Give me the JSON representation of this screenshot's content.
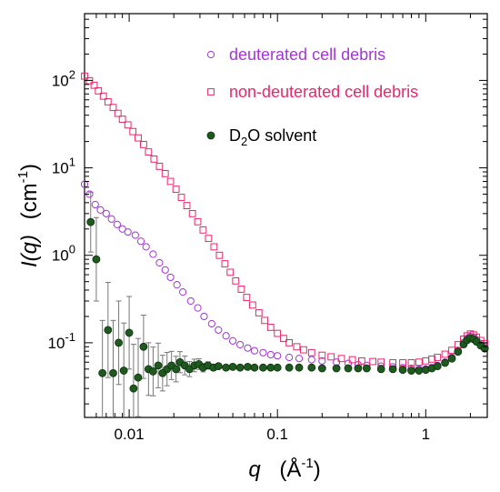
{
  "chart_data": {
    "type": "scatter",
    "x_scale": "log",
    "y_scale": "log",
    "xlim": [
      0.005,
      2.6
    ],
    "ylim": [
      0.014,
      580
    ],
    "grid": false,
    "legend_position": "top-right",
    "xlabel": {
      "symbol": "q",
      "unit_prefix": "(Å",
      "unit_exp": "-1",
      "unit_suffix": ")"
    },
    "ylabel": {
      "symbol": "I(q)",
      "unit_prefix": "(cm",
      "unit_exp": "-1",
      "unit_suffix": ")"
    },
    "x_ticks": [
      {
        "value": 0.01,
        "label": "0.01"
      },
      {
        "value": 0.1,
        "label": "0.1"
      },
      {
        "value": 1,
        "label": "1"
      }
    ],
    "y_ticks": [
      {
        "value": 0.1,
        "base": "10",
        "exp": "-1"
      },
      {
        "value": 1,
        "base": "10",
        "exp": "0"
      },
      {
        "value": 10,
        "base": "10",
        "exp": "1"
      },
      {
        "value": 100,
        "base": "10",
        "exp": "2"
      }
    ],
    "series": [
      {
        "name": "deuterated cell debris",
        "marker": "circle-open",
        "color": "#a236d6",
        "points": [
          [
            0.005,
            6.5
          ],
          [
            0.0054,
            5.0
          ],
          [
            0.0059,
            3.8
          ],
          [
            0.0064,
            3.3
          ],
          [
            0.007,
            3.0
          ],
          [
            0.0076,
            2.6
          ],
          [
            0.0083,
            2.25
          ],
          [
            0.009,
            2.0
          ],
          [
            0.0098,
            1.85
          ],
          [
            0.011,
            1.7
          ],
          [
            0.012,
            1.45
          ],
          [
            0.013,
            1.25
          ],
          [
            0.0145,
            1.03
          ],
          [
            0.016,
            0.82
          ],
          [
            0.0175,
            0.68
          ],
          [
            0.019,
            0.56
          ],
          [
            0.021,
            0.46
          ],
          [
            0.023,
            0.38
          ],
          [
            0.026,
            0.3
          ],
          [
            0.029,
            0.25
          ],
          [
            0.032,
            0.2
          ],
          [
            0.036,
            0.165
          ],
          [
            0.04,
            0.14
          ],
          [
            0.045,
            0.12
          ],
          [
            0.05,
            0.105
          ],
          [
            0.056,
            0.095
          ],
          [
            0.063,
            0.087
          ],
          [
            0.07,
            0.081
          ],
          [
            0.08,
            0.077
          ],
          [
            0.09,
            0.073
          ],
          [
            0.1,
            0.071
          ],
          [
            0.12,
            0.068
          ],
          [
            0.14,
            0.066
          ],
          [
            0.17,
            0.064
          ],
          [
            0.2,
            0.062
          ],
          [
            0.25,
            0.06
          ],
          [
            0.3,
            0.058
          ],
          [
            0.35,
            0.056
          ],
          [
            0.4,
            0.055
          ],
          [
            0.5,
            0.054
          ],
          [
            0.6,
            0.053
          ],
          [
            0.7,
            0.052
          ],
          [
            0.8,
            0.051
          ],
          [
            0.9,
            0.05
          ],
          [
            1.0,
            0.05
          ],
          [
            1.1,
            0.052
          ],
          [
            1.2,
            0.055
          ],
          [
            1.35,
            0.06
          ],
          [
            1.5,
            0.068
          ],
          [
            1.65,
            0.082
          ],
          [
            1.8,
            0.1
          ],
          [
            1.9,
            0.112
          ],
          [
            2.0,
            0.118
          ],
          [
            2.1,
            0.115
          ],
          [
            2.2,
            0.108
          ],
          [
            2.35,
            0.098
          ],
          [
            2.5,
            0.09
          ]
        ]
      },
      {
        "name": "non-deuterated cell debris",
        "marker": "square-open",
        "color": "#e8276b",
        "points": [
          [
            0.005,
            112
          ],
          [
            0.0054,
            99
          ],
          [
            0.0058,
            88
          ],
          [
            0.0062,
            76
          ],
          [
            0.0067,
            66
          ],
          [
            0.0072,
            57
          ],
          [
            0.0078,
            49
          ],
          [
            0.0084,
            42
          ],
          [
            0.009,
            36
          ],
          [
            0.0098,
            31
          ],
          [
            0.0106,
            26
          ],
          [
            0.0115,
            22
          ],
          [
            0.0125,
            18.5
          ],
          [
            0.0135,
            15.2
          ],
          [
            0.0147,
            12.6
          ],
          [
            0.016,
            10.4
          ],
          [
            0.0175,
            8.6
          ],
          [
            0.019,
            7.0
          ],
          [
            0.0207,
            5.7
          ],
          [
            0.0225,
            4.6
          ],
          [
            0.0245,
            3.7
          ],
          [
            0.0267,
            3.0
          ],
          [
            0.029,
            2.42
          ],
          [
            0.0315,
            1.95
          ],
          [
            0.0343,
            1.56
          ],
          [
            0.0373,
            1.25
          ],
          [
            0.0406,
            1.0
          ],
          [
            0.0442,
            0.8
          ],
          [
            0.048,
            0.64
          ],
          [
            0.0523,
            0.51
          ],
          [
            0.057,
            0.41
          ],
          [
            0.062,
            0.33
          ],
          [
            0.068,
            0.27
          ],
          [
            0.075,
            0.22
          ],
          [
            0.082,
            0.18
          ],
          [
            0.09,
            0.15
          ],
          [
            0.1,
            0.128
          ],
          [
            0.11,
            0.112
          ],
          [
            0.12,
            0.1
          ],
          [
            0.135,
            0.09
          ],
          [
            0.15,
            0.083
          ],
          [
            0.17,
            0.077
          ],
          [
            0.2,
            0.072
          ],
          [
            0.23,
            0.069
          ],
          [
            0.27,
            0.066
          ],
          [
            0.32,
            0.064
          ],
          [
            0.37,
            0.062
          ],
          [
            0.44,
            0.061
          ],
          [
            0.5,
            0.06
          ],
          [
            0.6,
            0.059
          ],
          [
            0.7,
            0.059
          ],
          [
            0.8,
            0.059
          ],
          [
            0.9,
            0.06
          ],
          [
            1.0,
            0.062
          ],
          [
            1.1,
            0.065
          ],
          [
            1.2,
            0.068
          ],
          [
            1.35,
            0.074
          ],
          [
            1.5,
            0.082
          ],
          [
            1.65,
            0.095
          ],
          [
            1.8,
            0.11
          ],
          [
            1.9,
            0.12
          ],
          [
            2.0,
            0.126
          ],
          [
            2.1,
            0.123
          ],
          [
            2.2,
            0.116
          ],
          [
            2.35,
            0.106
          ],
          [
            2.5,
            0.098
          ]
        ]
      },
      {
        "name": "D2O solvent",
        "legend_base": "D",
        "legend_sub": "2",
        "legend_rest": "O solvent",
        "marker": "circle-filled",
        "color": "#1e5a1e",
        "points": [
          [
            0.0055,
            2.4
          ],
          [
            0.006,
            0.9
          ],
          [
            0.0066,
            0.045
          ],
          [
            0.0072,
            0.14
          ],
          [
            0.0078,
            0.045
          ],
          [
            0.0085,
            0.1
          ],
          [
            0.0092,
            0.048
          ],
          [
            0.01,
            0.13
          ],
          [
            0.0107,
            0.03
          ],
          [
            0.0115,
            0.04
          ],
          [
            0.0125,
            0.09
          ],
          [
            0.0135,
            0.05
          ],
          [
            0.0145,
            0.047
          ],
          [
            0.0157,
            0.055
          ],
          [
            0.0168,
            0.045
          ],
          [
            0.018,
            0.05
          ],
          [
            0.0193,
            0.055
          ],
          [
            0.0207,
            0.05
          ],
          [
            0.022,
            0.06
          ],
          [
            0.0237,
            0.055
          ],
          [
            0.0255,
            0.05
          ],
          [
            0.0275,
            0.055
          ],
          [
            0.0295,
            0.057
          ],
          [
            0.0315,
            0.052
          ],
          [
            0.034,
            0.055
          ],
          [
            0.037,
            0.052
          ],
          [
            0.04,
            0.054
          ],
          [
            0.045,
            0.052
          ],
          [
            0.05,
            0.053
          ],
          [
            0.056,
            0.052
          ],
          [
            0.063,
            0.053
          ],
          [
            0.07,
            0.052
          ],
          [
            0.08,
            0.052
          ],
          [
            0.09,
            0.052
          ],
          [
            0.1,
            0.052
          ],
          [
            0.12,
            0.052
          ],
          [
            0.14,
            0.052
          ],
          [
            0.17,
            0.052
          ],
          [
            0.2,
            0.051
          ],
          [
            0.25,
            0.051
          ],
          [
            0.3,
            0.051
          ],
          [
            0.35,
            0.051
          ],
          [
            0.4,
            0.051
          ],
          [
            0.5,
            0.05
          ],
          [
            0.6,
            0.05
          ],
          [
            0.7,
            0.049
          ],
          [
            0.8,
            0.048
          ],
          [
            0.9,
            0.048
          ],
          [
            1.0,
            0.049
          ],
          [
            1.1,
            0.051
          ],
          [
            1.2,
            0.054
          ],
          [
            1.35,
            0.059
          ],
          [
            1.5,
            0.066
          ],
          [
            1.65,
            0.079
          ],
          [
            1.8,
            0.096
          ],
          [
            1.9,
            0.107
          ],
          [
            2.0,
            0.113
          ],
          [
            2.1,
            0.11
          ],
          [
            2.2,
            0.103
          ],
          [
            2.35,
            0.093
          ],
          [
            2.5,
            0.086
          ]
        ],
        "errors_factor": [
          [
            0.0055,
            2.2
          ],
          [
            0.006,
            3.0
          ],
          [
            0.0066,
            4.0
          ],
          [
            0.0072,
            3.5
          ],
          [
            0.0078,
            4.0
          ],
          [
            0.0085,
            3.0
          ],
          [
            0.0092,
            3.5
          ],
          [
            0.01,
            2.6
          ],
          [
            0.0107,
            3.2
          ],
          [
            0.0115,
            2.8
          ],
          [
            0.0125,
            2.3
          ],
          [
            0.0135,
            2.0
          ],
          [
            0.0145,
            1.9
          ],
          [
            0.0157,
            1.8
          ],
          [
            0.0168,
            1.6
          ],
          [
            0.018,
            1.55
          ],
          [
            0.0193,
            1.45
          ],
          [
            0.0207,
            1.4
          ],
          [
            0.022,
            1.32
          ],
          [
            0.0237,
            1.28
          ],
          [
            0.0255,
            1.22
          ],
          [
            0.0275,
            1.18
          ],
          [
            0.0295,
            1.15
          ],
          [
            0.0315,
            1.12
          ],
          [
            0.034,
            1.1
          ],
          [
            0.037,
            1.08
          ],
          [
            0.04,
            1.06
          ]
        ]
      }
    ]
  }
}
